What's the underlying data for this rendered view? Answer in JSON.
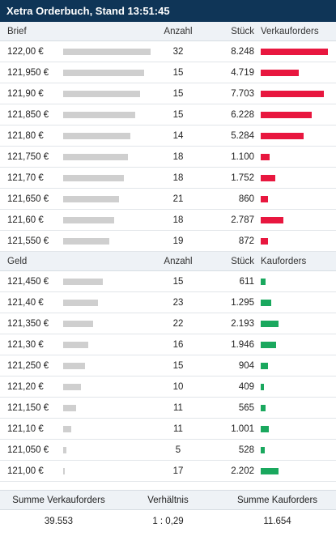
{
  "widget_title": "Xetra Orderbuch, Stand 13:51:45",
  "colors": {
    "header_bg": "#0f3557",
    "sell_bar": "#e8173f",
    "buy_bar": "#1aa85e",
    "price_bar": "#cfcfcf"
  },
  "ask_section": {
    "headers": {
      "price": "Brief",
      "count": "Anzahl",
      "qty": "Stück",
      "orders": "Verkauforders"
    },
    "rows": [
      {
        "price": "122,00 €",
        "count": "32",
        "qty": "8.248",
        "price_level": 1.0,
        "qty_num": 8248
      },
      {
        "price": "121,950 €",
        "count": "15",
        "qty": "4.719",
        "price_level": 0.93,
        "qty_num": 4719
      },
      {
        "price": "121,90 €",
        "count": "15",
        "qty": "7.703",
        "price_level": 0.88,
        "qty_num": 7703
      },
      {
        "price": "121,850 €",
        "count": "15",
        "qty": "6.228",
        "price_level": 0.82,
        "qty_num": 6228
      },
      {
        "price": "121,80 €",
        "count": "14",
        "qty": "5.284",
        "price_level": 0.77,
        "qty_num": 5284
      },
      {
        "price": "121,750 €",
        "count": "18",
        "qty": "1.100",
        "price_level": 0.74,
        "qty_num": 1100
      },
      {
        "price": "121,70 €",
        "count": "18",
        "qty": "1.752",
        "price_level": 0.69,
        "qty_num": 1752
      },
      {
        "price": "121,650 €",
        "count": "21",
        "qty": "860",
        "price_level": 0.64,
        "qty_num": 860
      },
      {
        "price": "121,60 €",
        "count": "18",
        "qty": "2.787",
        "price_level": 0.58,
        "qty_num": 2787
      },
      {
        "price": "121,550 €",
        "count": "19",
        "qty": "872",
        "price_level": 0.53,
        "qty_num": 872
      }
    ]
  },
  "bid_section": {
    "headers": {
      "price": "Geld",
      "count": "Anzahl",
      "qty": "Stück",
      "orders": "Kauforders"
    },
    "rows": [
      {
        "price": "121,450 €",
        "count": "15",
        "qty": "611",
        "price_level": 0.45,
        "qty_num": 611
      },
      {
        "price": "121,40 €",
        "count": "23",
        "qty": "1.295",
        "price_level": 0.4,
        "qty_num": 1295
      },
      {
        "price": "121,350 €",
        "count": "22",
        "qty": "2.193",
        "price_level": 0.34,
        "qty_num": 2193
      },
      {
        "price": "121,30 €",
        "count": "16",
        "qty": "1.946",
        "price_level": 0.29,
        "qty_num": 1946
      },
      {
        "price": "121,250 €",
        "count": "15",
        "qty": "904",
        "price_level": 0.25,
        "qty_num": 904
      },
      {
        "price": "121,20 €",
        "count": "10",
        "qty": "409",
        "price_level": 0.2,
        "qty_num": 409
      },
      {
        "price": "121,150 €",
        "count": "11",
        "qty": "565",
        "price_level": 0.15,
        "qty_num": 565
      },
      {
        "price": "121,10 €",
        "count": "11",
        "qty": "1.001",
        "price_level": 0.09,
        "qty_num": 1001
      },
      {
        "price": "121,050 €",
        "count": "5",
        "qty": "528",
        "price_level": 0.04,
        "qty_num": 528
      },
      {
        "price": "121,00 €",
        "count": "17",
        "qty": "2.202",
        "price_level": 0.01,
        "qty_num": 2202
      }
    ]
  },
  "summary": {
    "sell_label": "Summe Verkauforders",
    "ratio_label": "Verhältnis",
    "buy_label": "Summe Kauforders",
    "sell_value": "39.553",
    "ratio_value": "1 : 0,29",
    "buy_value": "11.654"
  }
}
